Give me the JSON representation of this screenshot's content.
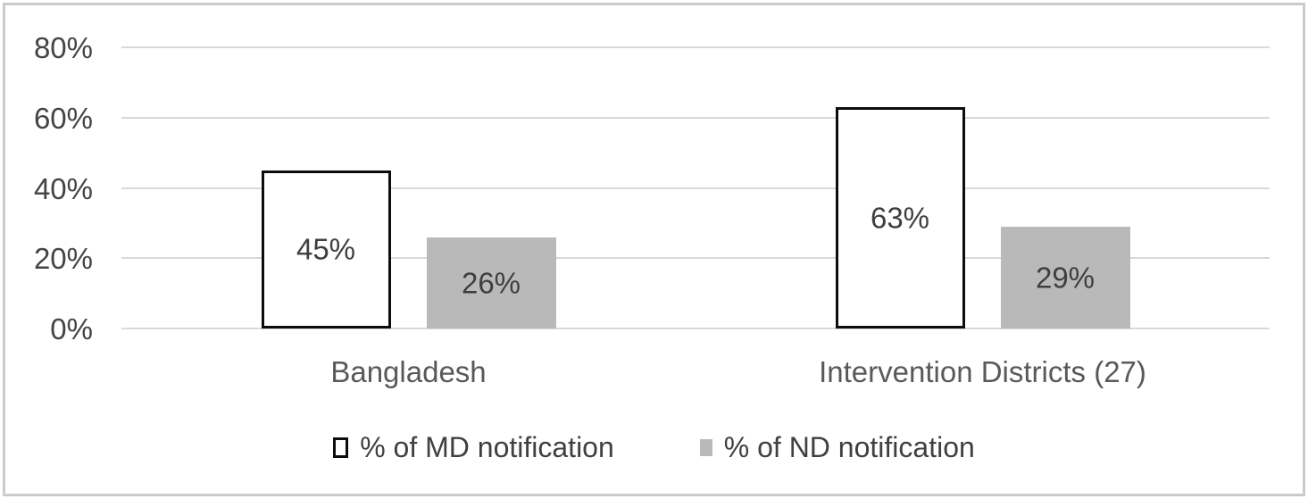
{
  "chart_data": {
    "type": "bar",
    "title": "",
    "categories": [
      "Bangladesh",
      "Intervention Districts (27)"
    ],
    "series": [
      {
        "name": "% of MD notification",
        "values": [
          45,
          63
        ],
        "data_labels": [
          "45%",
          "63%"
        ],
        "fill": "#ffffff",
        "border_color": "#0d0d0d"
      },
      {
        "name": "% of ND notification",
        "values": [
          26,
          29
        ],
        "data_labels": [
          "26%",
          "29%"
        ],
        "fill": "#b9b9b9",
        "border_color": "none"
      }
    ],
    "ylim": [
      0,
      80
    ],
    "yticks": [
      0,
      20,
      40,
      60,
      80
    ],
    "ytick_labels": [
      "0%",
      "20%",
      "40%",
      "60%",
      "80%"
    ],
    "xlabel": "",
    "ylabel": "",
    "grid": true,
    "legend_position": "bottom"
  },
  "colors": {
    "gridline": "#d9d9d9",
    "axis_text": "#444444",
    "label_text": "#3f3f3f",
    "gray_bar": "#b9b9b9",
    "bar_border": "#0d0d0d",
    "frame_border": "#cbcbcb"
  }
}
